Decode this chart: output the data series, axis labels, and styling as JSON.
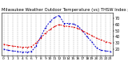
{
  "title": "Milwaukee Weather Outdoor Temperature (vs) THSW Index per Hour (Last 24 Hours)",
  "title_fontsize": 3.8,
  "bg_color": "#ffffff",
  "grid_color": "#999999",
  "hours": [
    0,
    1,
    2,
    3,
    4,
    5,
    6,
    7,
    8,
    9,
    10,
    11,
    12,
    13,
    14,
    15,
    16,
    17,
    18,
    19,
    20,
    21,
    22,
    23
  ],
  "temp": [
    28,
    26,
    25,
    24,
    23,
    23,
    24,
    30,
    38,
    46,
    52,
    57,
    60,
    58,
    57,
    56,
    54,
    50,
    46,
    42,
    38,
    35,
    32,
    30
  ],
  "thsw": [
    20,
    18,
    17,
    16,
    15,
    15,
    16,
    25,
    40,
    55,
    65,
    72,
    75,
    62,
    62,
    61,
    58,
    50,
    40,
    32,
    22,
    18,
    17,
    16
  ],
  "temp_color": "#dd0000",
  "thsw_color": "#0000cc",
  "ylim_min": 10,
  "ylim_max": 80,
  "yticks": [
    20,
    30,
    40,
    50,
    60,
    70
  ],
  "ytick_labels": [
    "20",
    "30",
    "40",
    "50",
    "60",
    "70"
  ],
  "ylabel_fontsize": 3.5,
  "xtick_fontsize": 3.2,
  "line_width": 0.7,
  "dash_pattern": [
    2,
    1.5
  ],
  "marker_size": 1.0,
  "fig_width": 1.6,
  "fig_height": 0.87,
  "fig_dpi": 100
}
